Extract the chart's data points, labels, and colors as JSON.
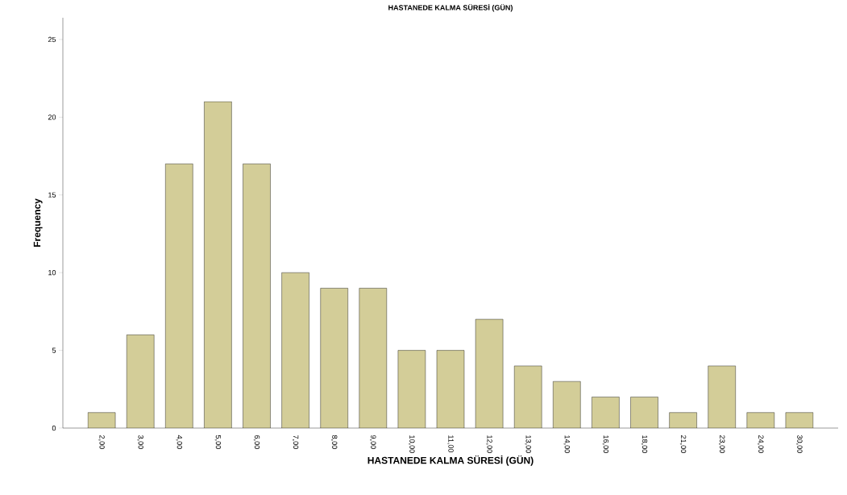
{
  "chart_data": {
    "type": "bar",
    "title": "HASTANEDE KALMA SÜRESİ (GÜN)",
    "xlabel": "HASTANEDE KALMA SÜRESİ (GÜN)",
    "ylabel": "Frequency",
    "categories": [
      "2,00",
      "3,00",
      "4,00",
      "5,00",
      "6,00",
      "7,00",
      "8,00",
      "9,00",
      "10,00",
      "11,00",
      "12,00",
      "13,00",
      "14,00",
      "16,00",
      "18,00",
      "21,00",
      "23,00",
      "24,00",
      "30,00"
    ],
    "values": [
      1,
      6,
      17,
      21,
      17,
      10,
      9,
      9,
      5,
      5,
      7,
      4,
      3,
      2,
      2,
      1,
      4,
      1,
      1
    ],
    "color": "#d3cd98",
    "ylim": [
      0,
      26.4
    ],
    "yticks": [
      0,
      5,
      10,
      15,
      20,
      25
    ]
  }
}
